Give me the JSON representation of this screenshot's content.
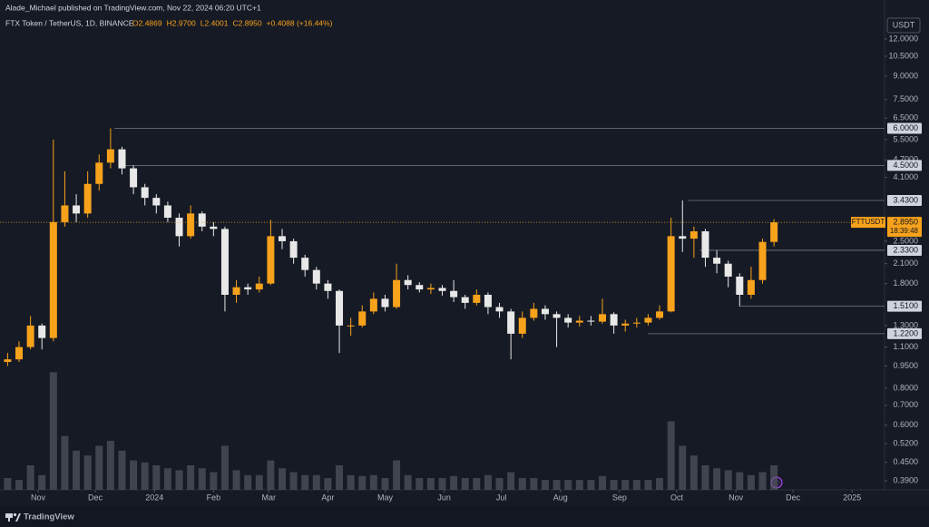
{
  "chart_data": {
    "type": "candlestick",
    "publisher": "Alade_Michael published on TradingView.com, Nov 22, 2024 06:20 UTC+1",
    "title": "FTX Token / TetherUS, 1D, BINANCE",
    "ohlc_text": [
      "O2.4869",
      "H2.9700",
      "L2.4001",
      "C2.8950",
      "+0.4088 (+16.44%)"
    ],
    "currency": "USDT",
    "footer": "TradingView",
    "log_scale": true,
    "grid": false,
    "up_color": "#f7a21b",
    "down_color": "#e8e8e8",
    "volume_color": "#5d606b",
    "x": [
      0,
      6,
      12,
      18,
      24,
      30,
      36,
      42,
      48,
      54,
      60,
      66,
      72,
      78,
      84,
      90,
      96,
      102,
      108,
      114,
      120,
      126,
      132,
      138,
      144,
      150,
      156,
      162,
      168,
      174,
      180,
      186,
      192,
      198,
      204,
      210,
      216,
      222,
      228,
      234,
      240,
      246,
      252,
      258,
      264,
      270,
      276,
      282,
      288,
      294,
      300,
      306,
      312,
      318,
      324,
      330,
      336,
      342,
      348,
      354,
      360,
      366,
      372,
      378,
      384,
      390,
      396,
      402
    ],
    "open": [
      0.98,
      1.0,
      1.1,
      1.3,
      1.18,
      2.9,
      3.3,
      3.1,
      3.9,
      4.6,
      5.1,
      4.4,
      3.8,
      3.5,
      3.3,
      3.0,
      2.6,
      3.1,
      2.8,
      2.75,
      1.65,
      1.75,
      1.72,
      1.8,
      2.6,
      2.5,
      2.2,
      2.0,
      1.8,
      1.7,
      1.3,
      1.3,
      1.45,
      1.6,
      1.5,
      1.85,
      1.78,
      1.72,
      1.74,
      1.7,
      1.62,
      1.55,
      1.65,
      1.5,
      1.45,
      1.22,
      1.38,
      1.48,
      1.42,
      1.38,
      1.33,
      1.35,
      1.34,
      1.42,
      1.3,
      1.32,
      1.33,
      1.38,
      1.45,
      2.6,
      2.55,
      2.7,
      2.2,
      2.1,
      1.9,
      1.65,
      1.85,
      2.4869
    ],
    "high": [
      1.05,
      1.15,
      1.4,
      1.32,
      5.5,
      4.3,
      3.6,
      4.3,
      4.9,
      6.0,
      5.2,
      4.5,
      3.9,
      3.6,
      3.4,
      3.1,
      3.3,
      3.15,
      2.9,
      2.8,
      1.85,
      1.8,
      1.9,
      2.95,
      2.75,
      2.55,
      2.25,
      2.05,
      1.85,
      1.72,
      1.38,
      1.52,
      1.68,
      1.65,
      2.1,
      1.92,
      1.82,
      1.8,
      1.78,
      1.85,
      1.65,
      1.72,
      1.68,
      1.55,
      1.48,
      1.45,
      1.55,
      1.52,
      1.45,
      1.42,
      1.4,
      1.4,
      1.6,
      1.44,
      1.36,
      1.38,
      1.42,
      1.52,
      3.0,
      3.43,
      2.8,
      2.75,
      2.33,
      2.15,
      1.95,
      2.05,
      2.55,
      2.97
    ],
    "low": [
      0.95,
      0.98,
      1.08,
      1.08,
      1.15,
      2.8,
      2.9,
      3.0,
      3.7,
      4.4,
      4.2,
      3.6,
      3.3,
      3.1,
      2.9,
      2.4,
      2.55,
      2.7,
      2.6,
      1.45,
      1.55,
      1.65,
      1.68,
      1.78,
      2.35,
      2.1,
      1.9,
      1.72,
      1.6,
      1.05,
      1.2,
      1.28,
      1.42,
      1.45,
      1.48,
      1.72,
      1.68,
      1.66,
      1.64,
      1.56,
      1.48,
      1.52,
      1.42,
      1.38,
      1.0,
      1.18,
      1.35,
      1.36,
      1.1,
      1.28,
      1.29,
      1.3,
      1.32,
      1.22,
      1.24,
      1.28,
      1.3,
      1.36,
      1.44,
      2.3,
      2.2,
      2.05,
      1.95,
      1.75,
      1.51,
      1.6,
      1.8,
      2.4001
    ],
    "close": [
      1.0,
      1.1,
      1.3,
      1.18,
      2.9,
      3.3,
      3.1,
      3.9,
      4.6,
      5.1,
      4.4,
      3.8,
      3.5,
      3.3,
      3.0,
      2.6,
      3.1,
      2.8,
      2.75,
      1.65,
      1.75,
      1.72,
      1.8,
      2.6,
      2.5,
      2.2,
      2.0,
      1.8,
      1.7,
      1.3,
      1.3,
      1.45,
      1.6,
      1.5,
      1.85,
      1.78,
      1.72,
      1.74,
      1.7,
      1.62,
      1.55,
      1.65,
      1.5,
      1.45,
      1.22,
      1.38,
      1.48,
      1.42,
      1.38,
      1.33,
      1.35,
      1.34,
      1.42,
      1.3,
      1.32,
      1.33,
      1.38,
      1.45,
      2.6,
      2.55,
      2.7,
      2.2,
      2.1,
      1.9,
      1.65,
      1.85,
      2.4869,
      2.895
    ],
    "volume": [
      12,
      10,
      25,
      15,
      120,
      55,
      40,
      35,
      45,
      50,
      40,
      30,
      28,
      25,
      22,
      20,
      25,
      22,
      18,
      45,
      20,
      15,
      15,
      30,
      22,
      18,
      15,
      15,
      12,
      25,
      15,
      14,
      15,
      12,
      30,
      15,
      12,
      12,
      12,
      14,
      12,
      12,
      15,
      12,
      18,
      12,
      12,
      10,
      10,
      10,
      10,
      10,
      14,
      10,
      10,
      10,
      10,
      12,
      70,
      45,
      35,
      25,
      22,
      20,
      18,
      15,
      18,
      25
    ],
    "xlim": [
      -4,
      460
    ],
    "ylim": [
      0.3635,
      13.15
    ],
    "xticks": [
      {
        "value": 16,
        "label": "Nov"
      },
      {
        "value": 46,
        "label": "Dec"
      },
      {
        "value": 77,
        "label": "2024"
      },
      {
        "value": 108,
        "label": "Feb"
      },
      {
        "value": 137,
        "label": "Mar"
      },
      {
        "value": 168,
        "label": "Apr"
      },
      {
        "value": 198,
        "label": "May"
      },
      {
        "value": 229,
        "label": "Jun"
      },
      {
        "value": 259,
        "label": "Jul"
      },
      {
        "value": 290,
        "label": "Aug"
      },
      {
        "value": 321,
        "label": "Sep"
      },
      {
        "value": 351,
        "label": "Oct"
      },
      {
        "value": 382,
        "label": "Nov"
      },
      {
        "value": 412,
        "label": "Dec"
      },
      {
        "value": 443,
        "label": "2025"
      }
    ],
    "yticks": [
      {
        "value": 12,
        "label": "12.0000"
      },
      {
        "value": 10.5,
        "label": "10.5000"
      },
      {
        "value": 9,
        "label": "9.0000"
      },
      {
        "value": 7.5,
        "label": "7.5000"
      },
      {
        "value": 6.5,
        "label": "6.5000"
      },
      {
        "value": 5.5,
        "label": "5.5000"
      },
      {
        "value": 4.7,
        "label": "4.7000"
      },
      {
        "value": 4.1,
        "label": "4.1000"
      },
      {
        "value": 2.5,
        "label": "2.5000"
      },
      {
        "value": 2.1,
        "label": "2.1000"
      },
      {
        "value": 1.8,
        "label": "1.8000"
      },
      {
        "value": 1.3,
        "label": "1.3000"
      },
      {
        "value": 1.1,
        "label": "1.1000"
      },
      {
        "value": 0.95,
        "label": "0.9500"
      },
      {
        "value": 0.8,
        "label": "0.8000"
      },
      {
        "value": 0.7,
        "label": "0.7000"
      },
      {
        "value": 0.6,
        "label": "0.6000"
      },
      {
        "value": 0.52,
        "label": "0.5200"
      },
      {
        "value": 0.45,
        "label": "0.4500"
      },
      {
        "value": 0.39,
        "label": "0.3900"
      }
    ],
    "levels": [
      {
        "value": 6,
        "label": "6.0000",
        "from": 56
      },
      {
        "value": 4.5,
        "label": "4.5000",
        "from": 60
      },
      {
        "value": 3.43,
        "label": "3.4300",
        "from": 357
      },
      {
        "value": 2.33,
        "label": "2.3300",
        "from": 363
      },
      {
        "value": 1.51,
        "label": "1.5100",
        "from": 384
      },
      {
        "value": 1.22,
        "label": "1.2200",
        "from": 336
      }
    ],
    "symbol": "FTTUSDT",
    "last_price": {
      "value": 2.895,
      "label": "2.8950"
    },
    "countdown": "18:39:48"
  }
}
